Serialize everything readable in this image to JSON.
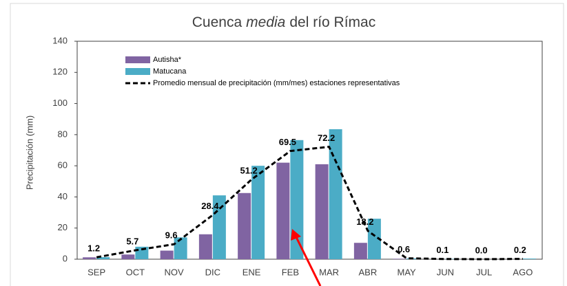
{
  "chart_data": {
    "type": "bar",
    "title": [
      "Cuenca",
      "media",
      "del río Rímac"
    ],
    "y_label": "Precipitación (mm)",
    "categories": [
      "SEP",
      "OCT",
      "NOV",
      "DIC",
      "ENE",
      "FEB",
      "MAR",
      "ABR",
      "MAY",
      "JUN",
      "JUL",
      "AGO"
    ],
    "series": [
      {
        "name": "Autisha*",
        "color": "#8064a2",
        "type": "bar",
        "values": [
          1.2,
          3,
          5.5,
          16,
          42.5,
          62,
          61,
          10.5,
          0.3,
          0,
          0,
          0
        ]
      },
      {
        "name": "Matucana",
        "color": "#4bacc6",
        "type": "bar",
        "values": [
          1.3,
          8,
          14,
          41,
          60,
          76.5,
          83.5,
          26,
          0.5,
          0.2,
          0,
          0.4
        ]
      },
      {
        "name": "Promedio mensual de precipitación (mm/mes) estaciones representativas",
        "color": "#000000",
        "type": "line",
        "dashed": true,
        "values": [
          1.2,
          5.7,
          9.6,
          28.4,
          51.2,
          69.5,
          72.2,
          18.2,
          0.6,
          0.1,
          0,
          0.2
        ],
        "value_labels": [
          "1.2",
          "5.7",
          "9.6",
          "28.4",
          "51.2",
          "69.5",
          "72.2",
          "18.2",
          "0.6",
          "0.1",
          "0.0",
          "0.2"
        ]
      }
    ],
    "ylim": [
      0,
      140
    ],
    "yticks": [
      0,
      20,
      40,
      60,
      80,
      100,
      120,
      140
    ],
    "grid": false
  }
}
